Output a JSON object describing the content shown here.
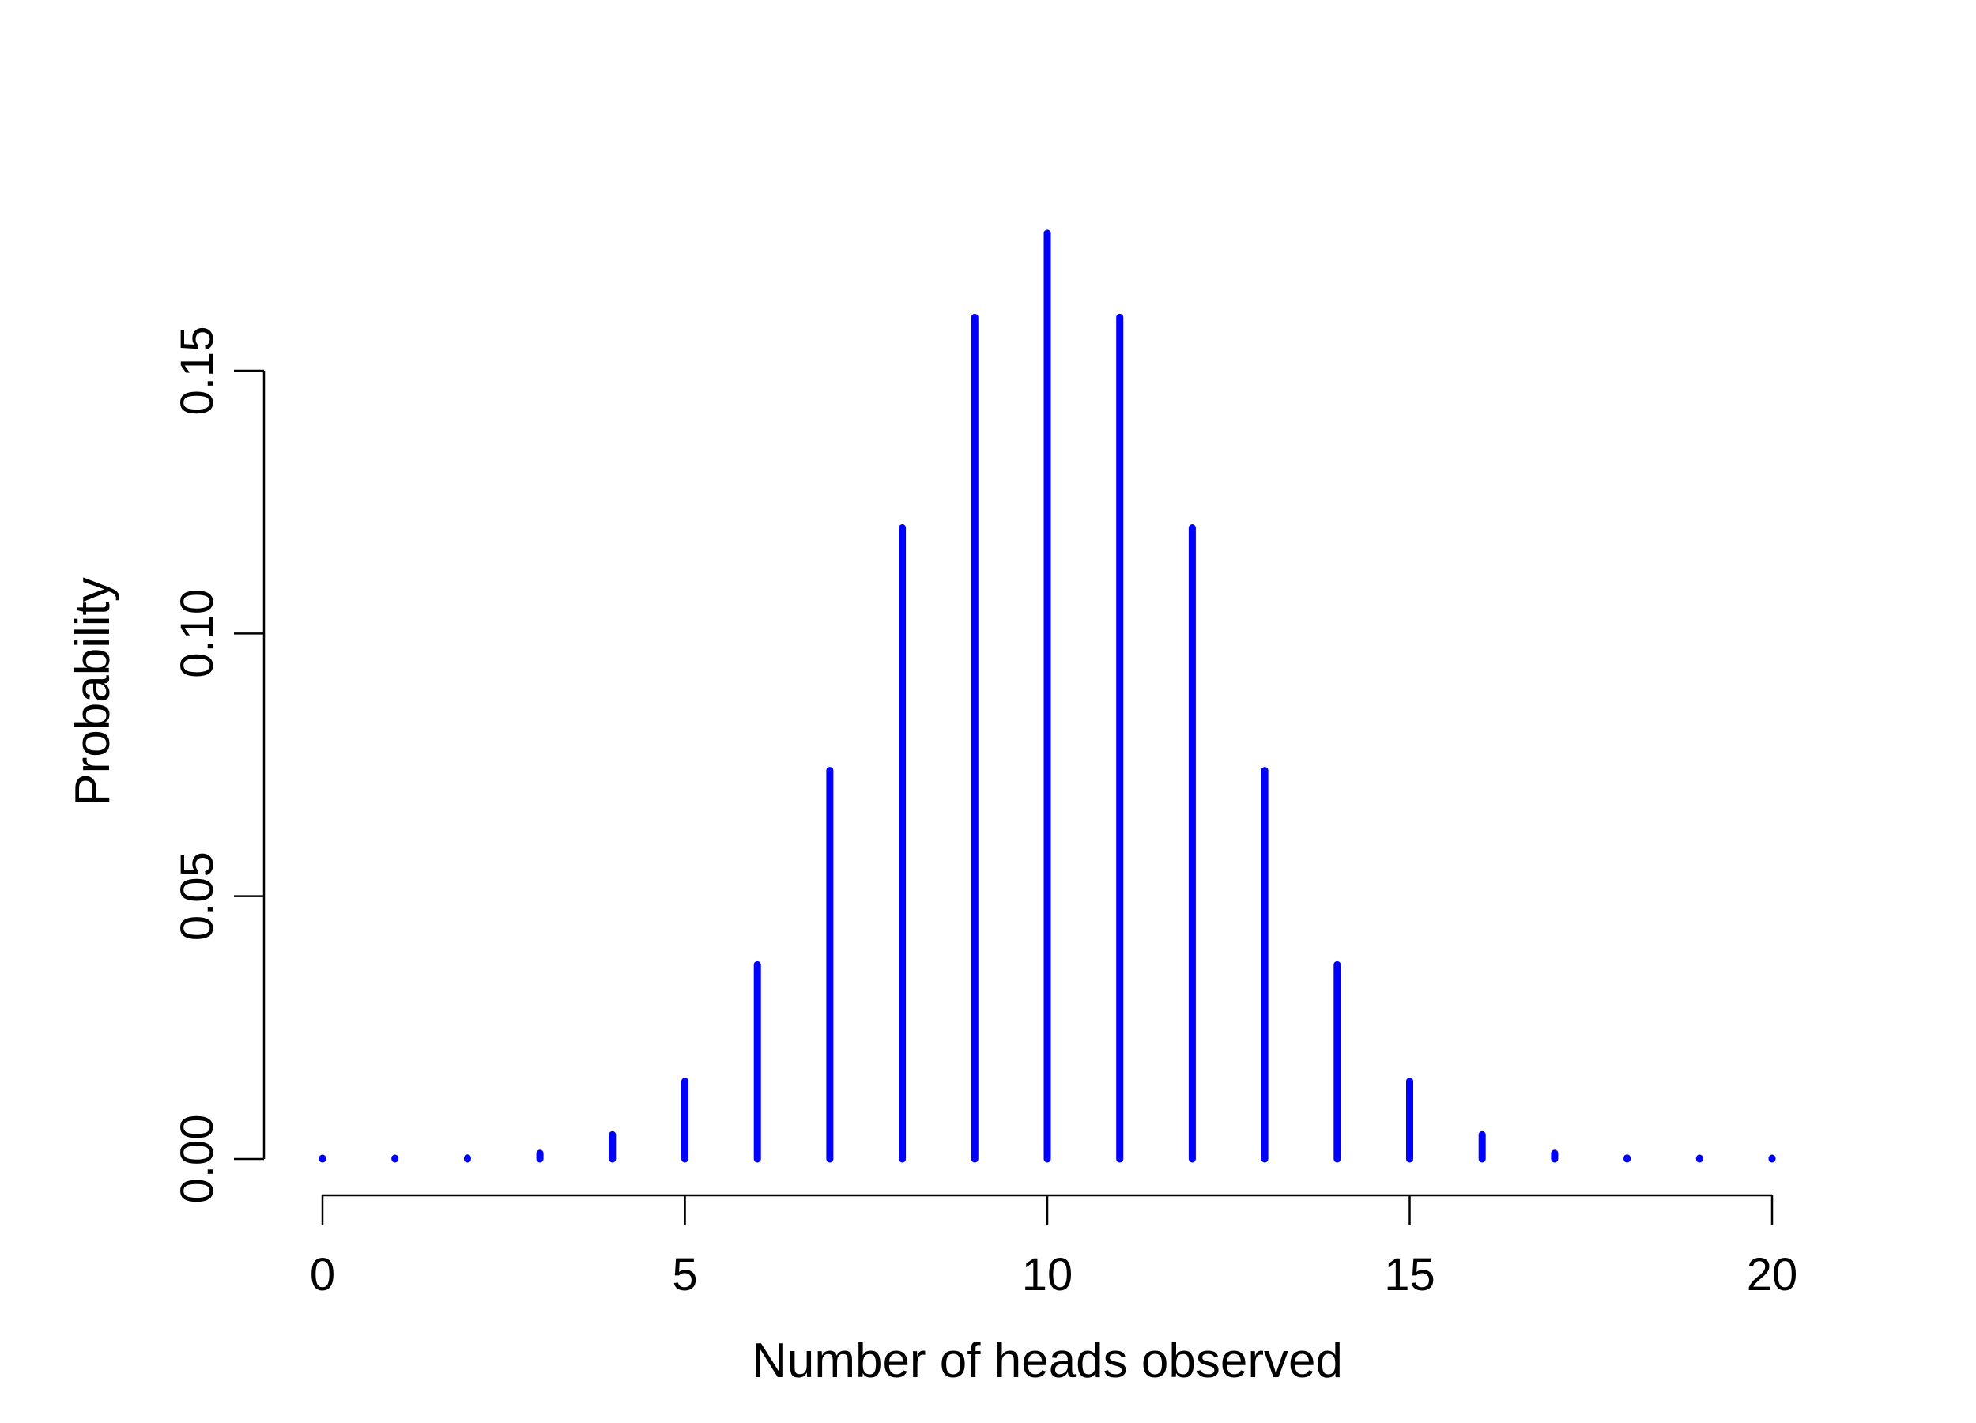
{
  "chart_data": {
    "type": "bar",
    "xlabel": "Number of heads observed",
    "ylabel": "Probability",
    "xlim": [
      0,
      20
    ],
    "ylim": [
      0,
      0.176
    ],
    "x_ticks": [
      0,
      5,
      10,
      15,
      20
    ],
    "x_tick_labels": [
      "0",
      "5",
      "10",
      "15",
      "20"
    ],
    "y_ticks": [
      0,
      0.05,
      0.1,
      0.15
    ],
    "y_tick_labels": [
      "0.00",
      "0.05",
      "0.10",
      "0.15"
    ],
    "grid": false,
    "legend": "none",
    "color": "#0000ff",
    "x": [
      0,
      1,
      2,
      3,
      4,
      5,
      6,
      7,
      8,
      9,
      10,
      11,
      12,
      13,
      14,
      15,
      16,
      17,
      18,
      19,
      20
    ],
    "values": [
      1e-06,
      1.9e-05,
      0.000181,
      0.001087,
      0.004621,
      0.014786,
      0.036964,
      0.073929,
      0.120134,
      0.160179,
      0.176197,
      0.160179,
      0.120134,
      0.073929,
      0.036964,
      0.014786,
      0.004621,
      0.001087,
      0.000181,
      1.9e-05,
      1e-06
    ]
  }
}
